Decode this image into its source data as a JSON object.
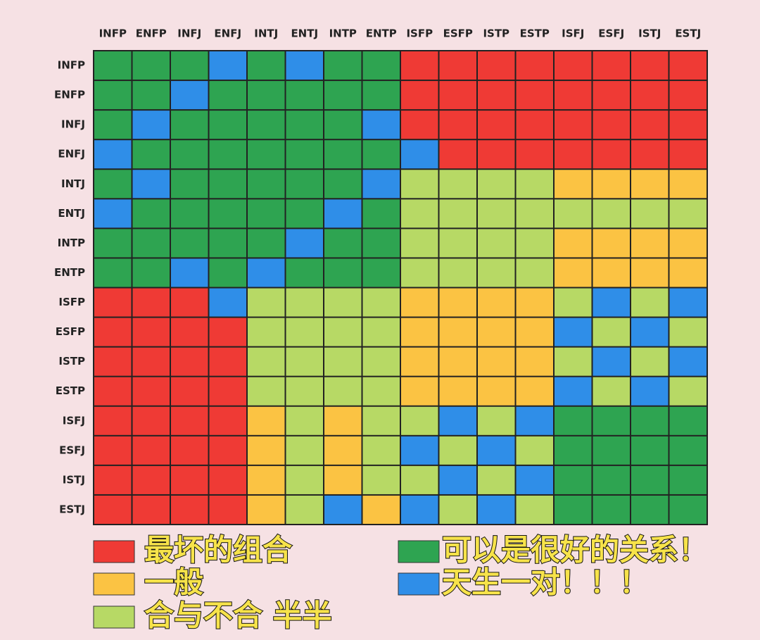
{
  "chart_data": {
    "type": "heatmap",
    "categories": [
      "INFP",
      "ENFP",
      "INFJ",
      "ENFJ",
      "INTJ",
      "ENTJ",
      "INTP",
      "ENTP",
      "ISFP",
      "ESFP",
      "ISTP",
      "ESTP",
      "ISFJ",
      "ESFJ",
      "ISTJ",
      "ESTJ"
    ],
    "levels": [
      {
        "name": "最坏的组合",
        "color": "#ef3a35"
      },
      {
        "name": "一般",
        "color": "#fbc343"
      },
      {
        "name": "合与不合 半半",
        "color": "#b7d965"
      },
      {
        "name": "可以是很好的关系！",
        "color": "#2ea451"
      },
      {
        "name": "天生一对！！！",
        "color": "#2f8ee8"
      }
    ],
    "matrix": [
      [
        3,
        3,
        3,
        4,
        3,
        4,
        3,
        3,
        0,
        0,
        0,
        0,
        0,
        0,
        0,
        0
      ],
      [
        3,
        3,
        4,
        3,
        3,
        3,
        3,
        3,
        0,
        0,
        0,
        0,
        0,
        0,
        0,
        0
      ],
      [
        3,
        4,
        3,
        3,
        3,
        3,
        3,
        4,
        0,
        0,
        0,
        0,
        0,
        0,
        0,
        0
      ],
      [
        4,
        3,
        3,
        3,
        3,
        3,
        3,
        3,
        4,
        0,
        0,
        0,
        0,
        0,
        0,
        0
      ],
      [
        3,
        4,
        3,
        3,
        3,
        3,
        3,
        4,
        2,
        2,
        2,
        2,
        1,
        1,
        1,
        1
      ],
      [
        4,
        3,
        3,
        3,
        3,
        3,
        4,
        3,
        2,
        2,
        2,
        2,
        2,
        2,
        2,
        2
      ],
      [
        3,
        3,
        3,
        3,
        3,
        4,
        3,
        3,
        2,
        2,
        2,
        2,
        1,
        1,
        1,
        1
      ],
      [
        3,
        3,
        4,
        3,
        4,
        3,
        3,
        3,
        2,
        2,
        2,
        2,
        1,
        1,
        1,
        1
      ],
      [
        0,
        0,
        0,
        4,
        2,
        2,
        2,
        2,
        1,
        1,
        1,
        1,
        2,
        4,
        2,
        4
      ],
      [
        0,
        0,
        0,
        0,
        2,
        2,
        2,
        2,
        1,
        1,
        1,
        1,
        4,
        2,
        4,
        2
      ],
      [
        0,
        0,
        0,
        0,
        2,
        2,
        2,
        2,
        1,
        1,
        1,
        1,
        2,
        4,
        2,
        4
      ],
      [
        0,
        0,
        0,
        0,
        2,
        2,
        2,
        2,
        1,
        1,
        1,
        1,
        4,
        2,
        4,
        2
      ],
      [
        0,
        0,
        0,
        0,
        1,
        2,
        1,
        2,
        2,
        4,
        2,
        4,
        3,
        3,
        3,
        3
      ],
      [
        0,
        0,
        0,
        0,
        1,
        2,
        1,
        2,
        4,
        2,
        4,
        2,
        3,
        3,
        3,
        3
      ],
      [
        0,
        0,
        0,
        0,
        1,
        2,
        1,
        2,
        2,
        4,
        2,
        4,
        3,
        3,
        3,
        3
      ],
      [
        0,
        0,
        0,
        0,
        1,
        2,
        4,
        1,
        4,
        2,
        4,
        2,
        3,
        3,
        3,
        3
      ]
    ]
  }
}
